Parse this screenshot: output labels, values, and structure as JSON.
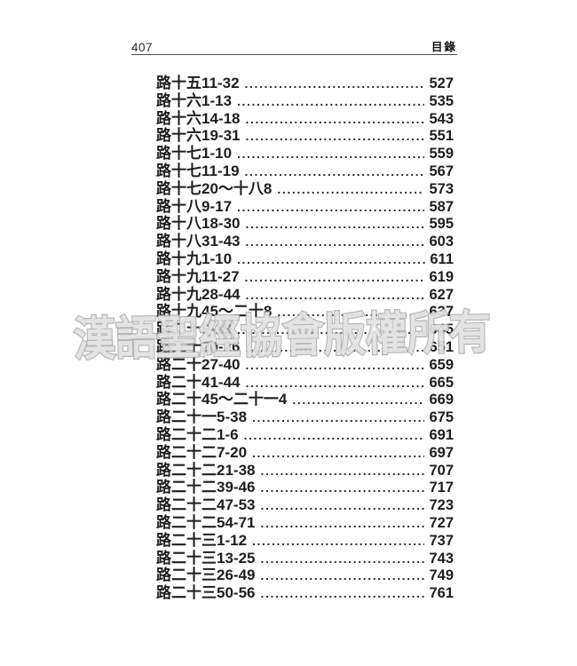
{
  "header": {
    "page_number": "407",
    "title": "目錄"
  },
  "watermark": {
    "text": "漢語聖經協會版權所有"
  },
  "toc": {
    "entries": [
      {
        "label": "路十五11-32",
        "page": "527"
      },
      {
        "label": "路十六1-13",
        "page": "535"
      },
      {
        "label": "路十六14-18",
        "page": "543"
      },
      {
        "label": "路十六19-31",
        "page": "551"
      },
      {
        "label": "路十七1-10",
        "page": "559"
      },
      {
        "label": "路十七11-19",
        "page": "567"
      },
      {
        "label": "路十七20～十八8",
        "page": "573"
      },
      {
        "label": "路十八9-17",
        "page": "587"
      },
      {
        "label": "路十八18-30",
        "page": "595"
      },
      {
        "label": "路十八31-43",
        "page": "603"
      },
      {
        "label": "路十九1-10",
        "page": "611"
      },
      {
        "label": "路十九11-27",
        "page": "619"
      },
      {
        "label": "路十九28-44",
        "page": "627"
      },
      {
        "label": "路十九45～二十8",
        "page": "637"
      },
      {
        "label": "路二十9-19",
        "page": "645"
      },
      {
        "label": "路二十20-26",
        "page": "651"
      },
      {
        "label": "路二十27-40",
        "page": "659"
      },
      {
        "label": "路二十41-44",
        "page": "665"
      },
      {
        "label": "路二十45～二十一4",
        "page": "669"
      },
      {
        "label": "路二十一5-38",
        "page": "675"
      },
      {
        "label": "路二十二1-6",
        "page": "691"
      },
      {
        "label": "路二十二7-20",
        "page": "697"
      },
      {
        "label": "路二十二21-38",
        "page": "707"
      },
      {
        "label": "路二十二39-46",
        "page": "717"
      },
      {
        "label": "路二十二47-53",
        "page": "723"
      },
      {
        "label": "路二十二54-71",
        "page": "727"
      },
      {
        "label": "路二十三1-12",
        "page": "737"
      },
      {
        "label": "路二十三13-25",
        "page": "743"
      },
      {
        "label": "路二十三26-49",
        "page": "749"
      },
      {
        "label": "路二十三50-56",
        "page": "761"
      }
    ]
  },
  "colors": {
    "text": "#1e1e1e",
    "rule": "#4d4d4d",
    "watermark_stroke": "#a8a8a8"
  }
}
